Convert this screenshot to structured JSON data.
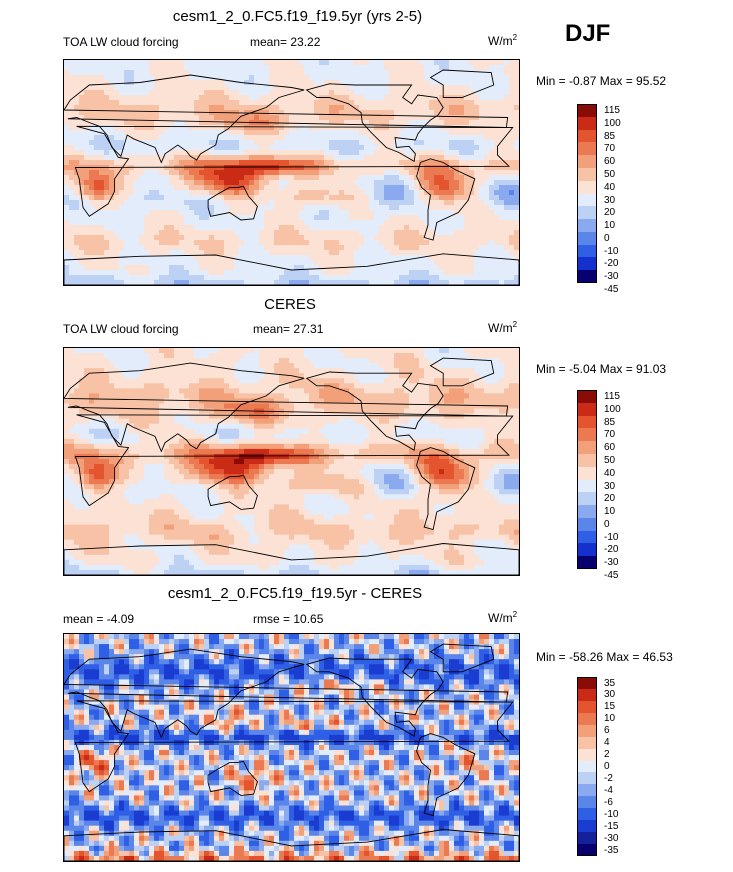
{
  "season": "DJF",
  "colors": {
    "main": [
      "#08006e",
      "#1431ce",
      "#2f5fe5",
      "#5a86ea",
      "#8aa9ef",
      "#bdd1f5",
      "#e3ecfa",
      "#fbe2d4",
      "#f7c2a6",
      "#f2a07a",
      "#eb7a52",
      "#e4542f",
      "#c92b16",
      "#8a0c06"
    ],
    "diff": [
      "#08006e",
      "#14219a",
      "#1a3cd0",
      "#2f5fe5",
      "#5a86ea",
      "#8aa9ef",
      "#bdd1f5",
      "#e3ecfa",
      "#fbe2d4",
      "#f7c2a6",
      "#f2a07a",
      "#eb7a52",
      "#e4542f",
      "#c92b16",
      "#8a0c06"
    ]
  },
  "panels": [
    {
      "title": "cesm1_2_0.FC5.f19_f19.5yr (yrs 2-5)",
      "left_label": "TOA LW cloud forcing",
      "center_label": "mean=  23.22",
      "units": "W/m",
      "units_sup": "2",
      "minmax": "Min =  -0.87 Max =  95.52"
    },
    {
      "title": "CERES",
      "left_label": "TOA LW cloud forcing",
      "center_label": "mean=  27.31",
      "units": "W/m",
      "units_sup": "2",
      "minmax": "Min =  -5.04 Max =  91.03"
    },
    {
      "title": "cesm1_2_0.FC5.f19_f19.5yr - CERES",
      "left_label": "mean =  -4.09",
      "center_label": "rmse =  10.65",
      "units": "W/m",
      "units_sup": "2",
      "minmax": "Min = -58.26 Max =  46.53"
    }
  ],
  "chart_data": [
    {
      "type": "heatmap",
      "title": "cesm1_2_0.FC5.f19_f19.5yr (yrs 2-5)",
      "subtitle": "TOA LW cloud forcing",
      "units": "W/m^2",
      "mean": 23.22,
      "min": -0.87,
      "max": 95.52,
      "contour_levels": [
        -45,
        -30,
        -20,
        -10,
        0,
        10,
        20,
        30,
        40,
        50,
        60,
        70,
        85,
        100,
        115
      ]
    },
    {
      "type": "heatmap",
      "title": "CERES",
      "subtitle": "TOA LW cloud forcing",
      "units": "W/m^2",
      "mean": 27.31,
      "min": -5.04,
      "max": 91.03,
      "contour_levels": [
        -45,
        -30,
        -20,
        -10,
        0,
        10,
        20,
        30,
        40,
        50,
        60,
        70,
        85,
        100,
        115
      ]
    },
    {
      "type": "heatmap",
      "title": "cesm1_2_0.FC5.f19_f19.5yr - CERES",
      "units": "W/m^2",
      "mean": -4.09,
      "rmse": 10.65,
      "min": -58.26,
      "max": 46.53,
      "contour_levels": [
        -35,
        -30,
        -15,
        -10,
        -6,
        -4,
        -2,
        0,
        2,
        4,
        6,
        10,
        15,
        30,
        35
      ]
    }
  ],
  "colorbars": [
    {
      "labels": [
        "115",
        "100",
        "85",
        "70",
        "60",
        "50",
        "40",
        "30",
        "20",
        "10",
        "0",
        "-10",
        "-20",
        "-30",
        "-45"
      ]
    },
    {
      "labels": [
        "115",
        "100",
        "85",
        "70",
        "60",
        "50",
        "40",
        "30",
        "20",
        "10",
        "0",
        "-10",
        "-20",
        "-30",
        "-45"
      ]
    },
    {
      "labels": [
        "35",
        "30",
        "15",
        "10",
        "6",
        "4",
        "2",
        "0",
        "-2",
        "-4",
        "-6",
        "-10",
        "-15",
        "-30",
        "-35"
      ]
    }
  ]
}
